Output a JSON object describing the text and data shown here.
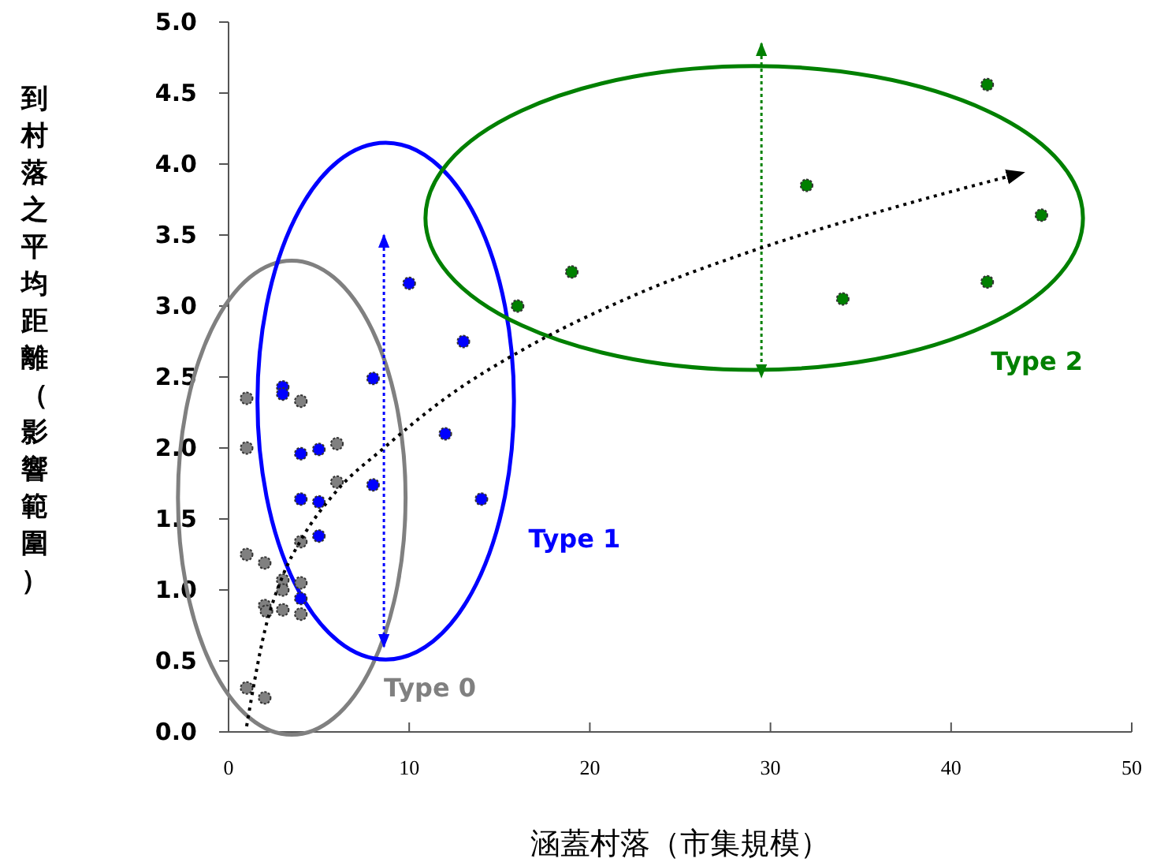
{
  "chart_data": {
    "type": "scatter",
    "xlabel": "涵蓋村落（市集規模）",
    "ylabel": "到村落之平均距離（影響範圍）",
    "xlim": [
      0,
      50
    ],
    "xticks": [
      0,
      10,
      20,
      30,
      40,
      50
    ],
    "ylim": [
      0,
      5
    ],
    "yticks": [
      {
        "value": 0,
        "label": "0.0"
      },
      {
        "value": 0.5,
        "label": "0.5"
      },
      {
        "value": 1,
        "label": "1.0"
      },
      {
        "value": 1.5,
        "label": "1.5"
      },
      {
        "value": 2,
        "label": "2.0"
      },
      {
        "value": 2.5,
        "label": "2.5"
      },
      {
        "value": 3,
        "label": "3.0"
      },
      {
        "value": 3.5,
        "label": "3.5"
      },
      {
        "value": 4,
        "label": "4.0"
      },
      {
        "value": 4.5,
        "label": "4.5"
      },
      {
        "value": 5,
        "label": "5.0"
      }
    ],
    "grid": false,
    "legend": false,
    "marker": "circle",
    "series": [
      {
        "name": "Type 0",
        "color": "#808080",
        "x": [
          1,
          1,
          1,
          1,
          2,
          2,
          2.1,
          2,
          3,
          3,
          3,
          4,
          4,
          4,
          4,
          6,
          6
        ],
        "values": [
          2.35,
          2.0,
          1.25,
          0.31,
          1.19,
          0.89,
          0.85,
          0.24,
          1.07,
          1.0,
          0.86,
          2.33,
          1.34,
          1.05,
          0.83,
          2.03,
          1.76
        ]
      },
      {
        "name": "Type 1",
        "color": "#0000ff",
        "x": [
          3,
          3,
          4,
          5,
          4,
          5,
          5,
          4,
          8,
          8,
          10,
          13,
          12,
          14
        ],
        "values": [
          2.43,
          2.38,
          1.96,
          1.99,
          1.64,
          1.62,
          1.38,
          0.94,
          2.49,
          1.74,
          3.16,
          2.75,
          2.1,
          1.64
        ]
      },
      {
        "name": "Type 2",
        "color": "#008000",
        "x": [
          16,
          19,
          32,
          34,
          42,
          42,
          45
        ],
        "values": [
          3.0,
          3.24,
          3.85,
          3.05,
          4.56,
          3.17,
          3.64
        ]
      },
      {
        "type": "line",
        "color": "#000000",
        "line_style": "dotted",
        "marker": "none",
        "x": [
          1,
          2,
          3,
          4,
          6,
          8.6,
          12,
          16.4,
          22,
          29.5,
          37,
          44
        ],
        "values": [
          0.04,
          0.71,
          1.1,
          1.35,
          1.7,
          2.0,
          2.35,
          2.7,
          3.05,
          3.41,
          3.7,
          3.94
        ]
      }
    ]
  }
}
